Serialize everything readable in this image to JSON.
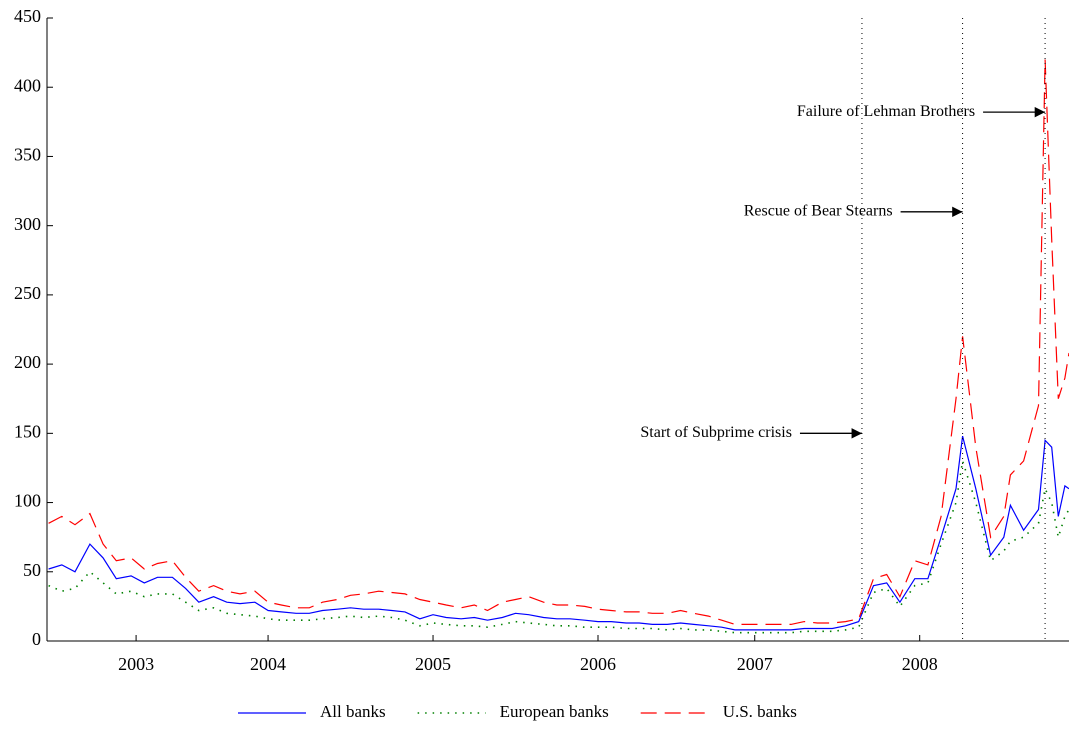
{
  "chart_data": {
    "type": "line",
    "x": [
      2002.67,
      2002.75,
      2002.83,
      2002.92,
      2003.0,
      2003.08,
      2003.17,
      2003.25,
      2003.33,
      2003.42,
      2003.5,
      2003.58,
      2003.67,
      2003.75,
      2003.83,
      2003.92,
      2004.0,
      2004.08,
      2004.17,
      2004.25,
      2004.33,
      2004.42,
      2004.5,
      2004.58,
      2004.67,
      2004.75,
      2004.83,
      2004.92,
      2005.0,
      2005.08,
      2005.17,
      2005.25,
      2005.33,
      2005.42,
      2005.5,
      2005.58,
      2005.67,
      2005.75,
      2005.83,
      2005.92,
      2006.0,
      2006.08,
      2006.17,
      2006.25,
      2006.33,
      2006.42,
      2006.5,
      2006.58,
      2006.67,
      2006.75,
      2006.83,
      2006.92,
      2007.0,
      2007.08,
      2007.17,
      2007.25,
      2007.33,
      2007.42,
      2007.5,
      2007.58,
      2007.67,
      2007.75,
      2007.83,
      2007.92,
      2008.0,
      2008.08,
      2008.17,
      2008.21,
      2008.29,
      2008.38,
      2008.46,
      2008.5,
      2008.58,
      2008.67,
      2008.71,
      2008.75,
      2008.79,
      2008.83,
      2008.855
    ],
    "series": [
      {
        "name": "All banks",
        "color": "#0000ff",
        "style": "solid",
        "values": [
          52,
          55,
          50,
          70,
          60,
          45,
          47,
          42,
          46,
          46,
          38,
          28,
          32,
          28,
          27,
          28,
          22,
          21,
          20,
          20,
          22,
          23,
          24,
          23,
          23,
          22,
          21,
          16,
          19,
          17,
          16,
          17,
          15,
          17,
          20,
          19,
          17,
          16,
          16,
          15,
          14,
          14,
          13,
          13,
          12,
          12,
          13,
          12,
          11,
          10,
          8,
          8,
          8,
          8,
          8,
          9,
          9,
          9,
          11,
          14,
          40,
          42,
          28,
          45,
          45,
          75,
          110,
          148,
          110,
          62,
          75,
          98,
          80,
          95,
          145,
          140,
          90,
          112,
          110
        ]
      },
      {
        "name": "European banks",
        "color": "#008000",
        "style": "dotted",
        "values": [
          40,
          36,
          38,
          50,
          42,
          34,
          36,
          32,
          34,
          34,
          28,
          22,
          24,
          20,
          19,
          18,
          16,
          15,
          15,
          15,
          16,
          17,
          18,
          17,
          18,
          17,
          15,
          11,
          13,
          12,
          11,
          11,
          10,
          12,
          14,
          13,
          12,
          11,
          11,
          10,
          10,
          10,
          9,
          9,
          9,
          8,
          9,
          8,
          8,
          7,
          6,
          6,
          6,
          6,
          6,
          7,
          7,
          7,
          8,
          10,
          35,
          38,
          25,
          40,
          42,
          70,
          100,
          130,
          100,
          58,
          65,
          72,
          75,
          85,
          110,
          100,
          75,
          90,
          95
        ]
      },
      {
        "name": "U.S. banks",
        "color": "#ff0000",
        "style": "dashed",
        "values": [
          85,
          90,
          84,
          92,
          70,
          58,
          60,
          52,
          56,
          58,
          46,
          36,
          40,
          36,
          34,
          36,
          28,
          26,
          24,
          24,
          28,
          30,
          33,
          34,
          36,
          35,
          34,
          30,
          28,
          26,
          24,
          26,
          22,
          28,
          30,
          32,
          28,
          26,
          26,
          25,
          23,
          22,
          21,
          21,
          20,
          20,
          22,
          20,
          18,
          15,
          12,
          12,
          12,
          12,
          12,
          14,
          13,
          13,
          14,
          16,
          45,
          48,
          32,
          58,
          55,
          90,
          175,
          220,
          140,
          75,
          90,
          120,
          130,
          170,
          420,
          290,
          175,
          190,
          208
        ]
      }
    ],
    "xlim": [
      2002.66,
      2008.855
    ],
    "xticks": [
      {
        "value": 2003.2,
        "label": "2003"
      },
      {
        "value": 2004.0,
        "label": "2004"
      },
      {
        "value": 2005.0,
        "label": "2005"
      },
      {
        "value": 2006.0,
        "label": "2006"
      },
      {
        "value": 2006.95,
        "label": "2007"
      },
      {
        "value": 2007.95,
        "label": "2008"
      }
    ],
    "ylim": [
      0,
      450
    ],
    "yticks": [
      0,
      50,
      100,
      150,
      200,
      250,
      300,
      350,
      400,
      450
    ],
    "grid": false,
    "events": [
      {
        "x": 2007.6,
        "y": 150,
        "label": "Start of Subprime crisis"
      },
      {
        "x": 2008.21,
        "y": 310,
        "label": "Rescue of Bear Stearns"
      },
      {
        "x": 2008.71,
        "y": 382,
        "label": "Failure of Lehman Brothers"
      }
    ],
    "legend": "bottom"
  }
}
